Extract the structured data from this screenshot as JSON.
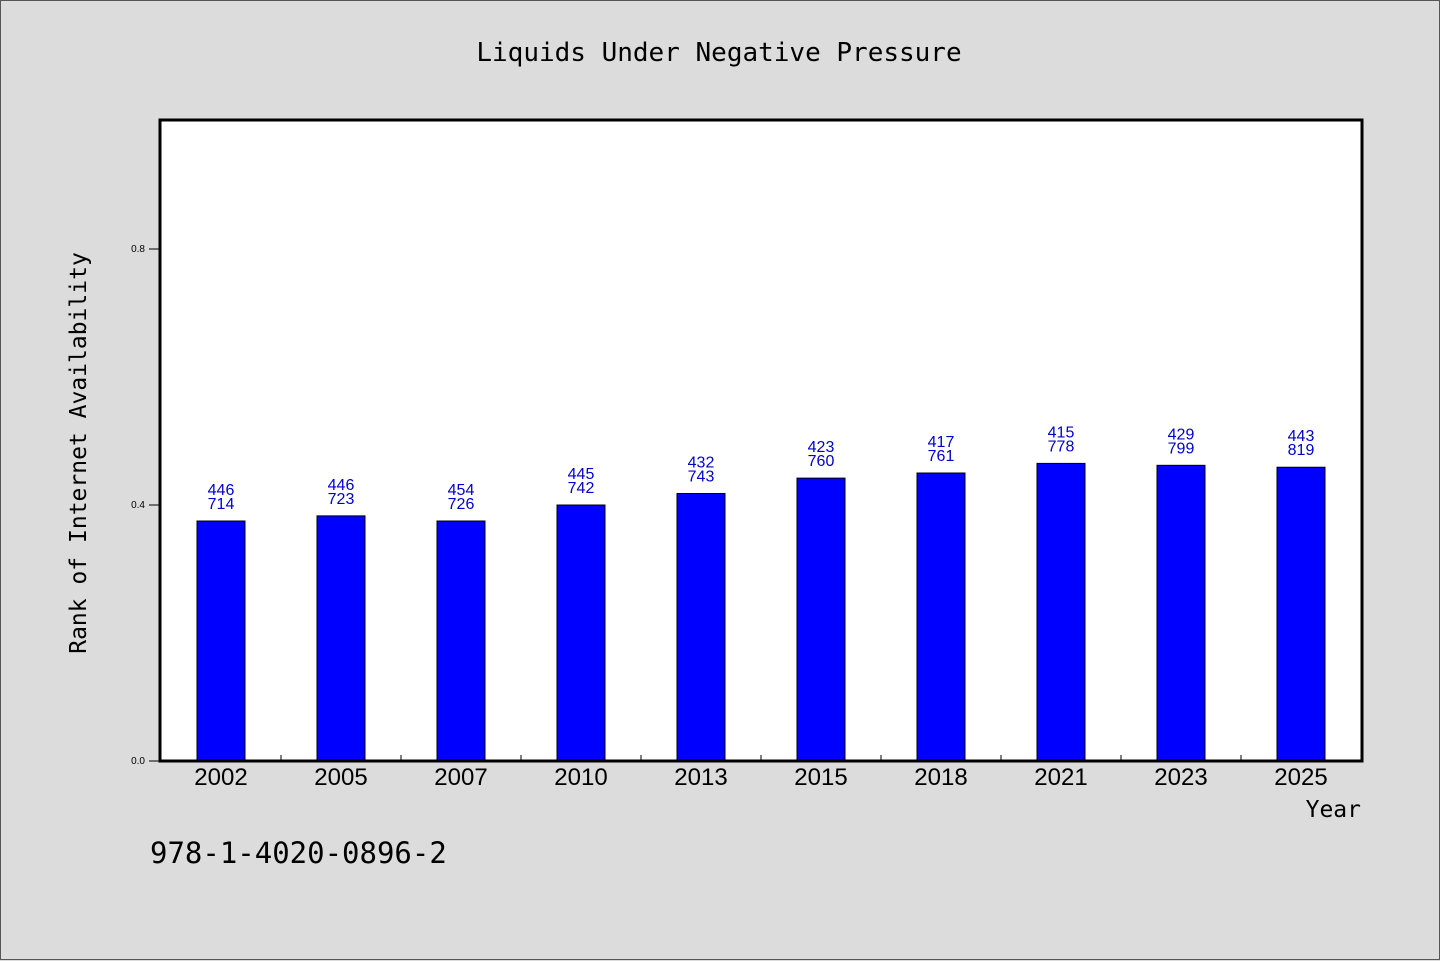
{
  "chart_data": {
    "type": "bar",
    "title": "Liquids Under Negative Pressure",
    "xlabel": "Year",
    "ylabel": "Rank of Internet Availability",
    "categories": [
      "2002",
      "2005",
      "2007",
      "2010",
      "2013",
      "2015",
      "2018",
      "2021",
      "2023",
      "2025"
    ],
    "series": [
      {
        "values": [
          0.375,
          0.383,
          0.375,
          0.4,
          0.418,
          0.442,
          0.45,
          0.465,
          0.462,
          0.459
        ],
        "color": "#0000ff",
        "label_lines": [
          [
            "446",
            "714"
          ],
          [
            "446",
            "723"
          ],
          [
            "454",
            "726"
          ],
          [
            "445",
            "742"
          ],
          [
            "432",
            "743"
          ],
          [
            "423",
            "760"
          ],
          [
            "417",
            "761"
          ],
          [
            "415",
            "778"
          ],
          [
            "429",
            "799"
          ],
          [
            "443",
            "819"
          ]
        ]
      }
    ],
    "ylim": [
      0,
      1.0
    ],
    "yticks": [
      0.0,
      0.4,
      0.8
    ],
    "ytick_labels": [
      "0.0",
      "0.4",
      "0.8"
    ],
    "grid": false,
    "legend": "none"
  },
  "footer": {
    "isbn": "978-1-4020-0896-2"
  },
  "colors": {
    "background": "#dcdcdc",
    "plot_background": "#ffffff",
    "bar": "#0000ff",
    "data_label": "#0000cc"
  }
}
